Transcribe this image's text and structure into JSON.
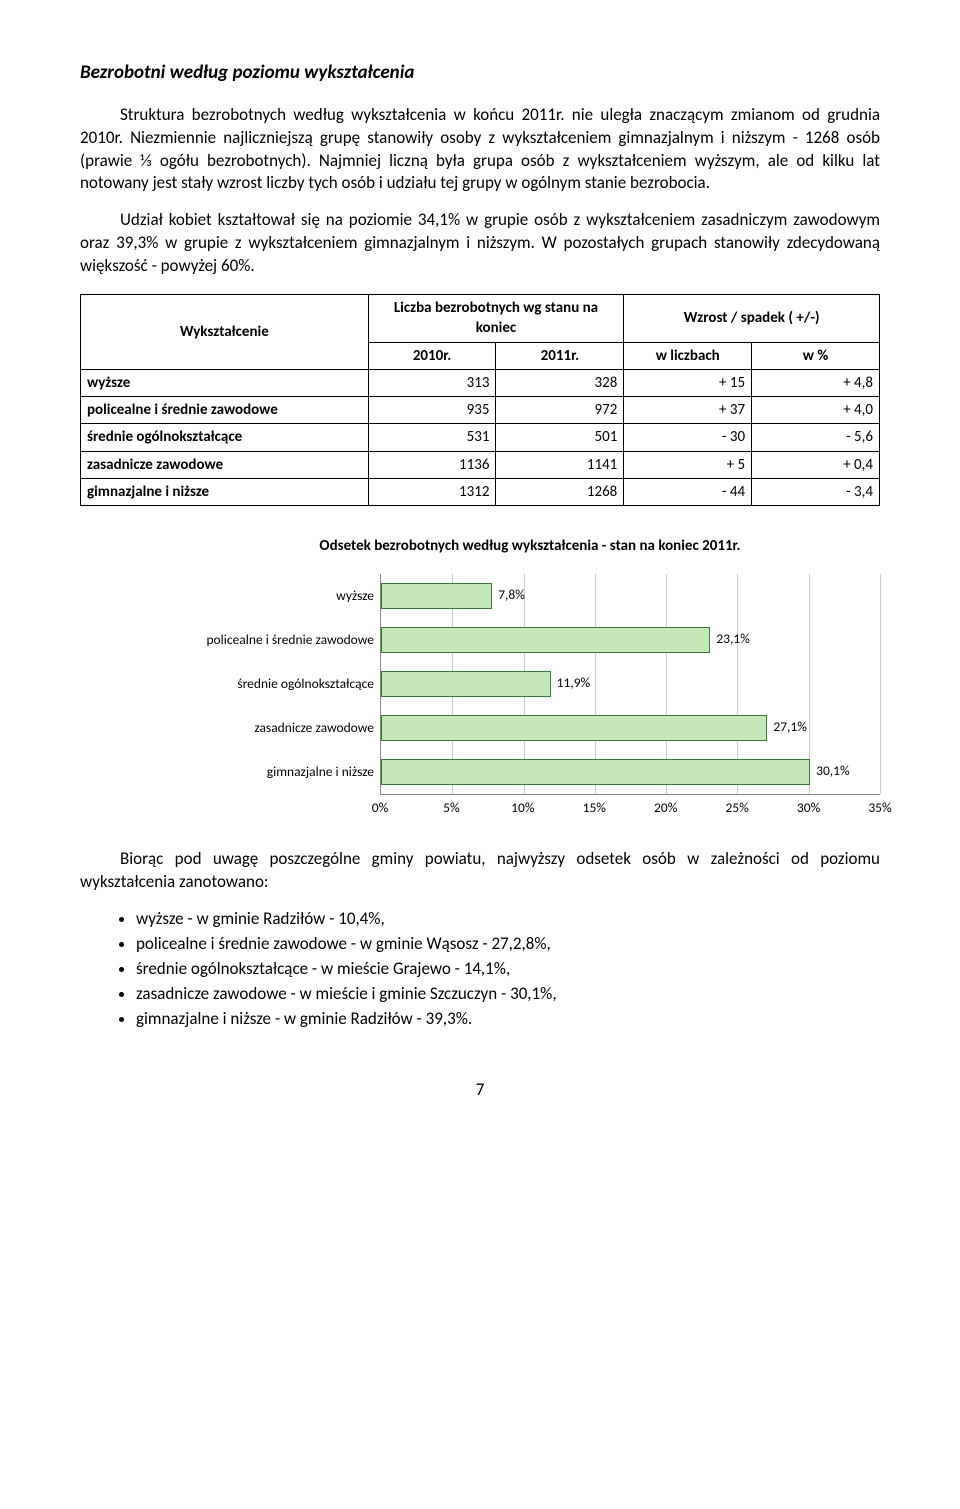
{
  "section_title": "Bezrobotni według poziomu wykształcenia",
  "para1": "Struktura bezrobotnych według wykształcenia w końcu 2011r. nie uległa znaczącym zmianom od grudnia 2010r. Niezmiennie najliczniejszą grupę stanowiły osoby z wykształceniem gimnazjalnym i niższym - 1268 osób (prawie ⅓ ogółu bezrobotnych). Najmniej liczną była grupa osób z wykształceniem wyższym, ale od kilku lat notowany jest stały wzrost liczby tych osób i udziału tej grupy w ogólnym stanie bezrobocia.",
  "para2": "Udział kobiet kształtował się na poziomie 34,1% w grupie osób z wykształceniem zasadniczym zawodowym oraz 39,3% w grupie z wykształceniem gimnazjalnym i niższym. W pozostałych grupach stanowiły zdecydowaną większość - powyżej 60%.",
  "table": {
    "col_group_left": "Wykształcenie",
    "col_group_mid": "Liczba bezrobotnych wg stanu na koniec",
    "col_group_right": "Wzrost / spadek ( +/-)",
    "sub_2010": "2010r.",
    "sub_2011": "2011r.",
    "sub_licz": "w liczbach",
    "sub_pct": "w %",
    "rows": [
      {
        "label": "wyższe",
        "v2010": "313",
        "v2011": "328",
        "delta": "+ 15",
        "pct": "+ 4,8"
      },
      {
        "label": "policealne i średnie zawodowe",
        "v2010": "935",
        "v2011": "972",
        "delta": "+ 37",
        "pct": "+ 4,0"
      },
      {
        "label": "średnie ogólnokształcące",
        "v2010": "531",
        "v2011": "501",
        "delta": "- 30",
        "pct": "- 5,6"
      },
      {
        "label": "zasadnicze zawodowe",
        "v2010": "1136",
        "v2011": "1141",
        "delta": "+ 5",
        "pct": "+ 0,4"
      },
      {
        "label": "gimnazjalne i niższe",
        "v2010": "1312",
        "v2011": "1268",
        "delta": "- 44",
        "pct": "- 3,4"
      }
    ]
  },
  "chart": {
    "type": "bar-horizontal",
    "title": "Odsetek bezrobotnych według wykształcenia - stan na koniec 2011r.",
    "xmax": 35,
    "xtick_step": 5,
    "bar_fill": "#c3e8b8",
    "bar_border": "#3b7a3b",
    "grid_color": "#cccccc",
    "categories": [
      {
        "label": "wyższe",
        "value": 7.8,
        "text": "7,8%"
      },
      {
        "label": "policealne i średnie zawodowe",
        "value": 23.1,
        "text": "23,1%"
      },
      {
        "label": "średnie ogólnokształcące",
        "value": 11.9,
        "text": "11,9%"
      },
      {
        "label": "zasadnicze zawodowe",
        "value": 27.1,
        "text": "27,1%"
      },
      {
        "label": "gimnazjalne i niższe",
        "value": 30.1,
        "text": "30,1%"
      }
    ],
    "ticks": [
      "0%",
      "5%",
      "10%",
      "15%",
      "20%",
      "25%",
      "30%",
      "35%"
    ]
  },
  "para3": "Biorąc pod uwagę poszczególne gminy powiatu, najwyższy odsetek osób w zależności od poziomu wykształcenia zanotowano:",
  "bullets": [
    "wyższe - w gminie Radziłów - 10,4%,",
    "policealne i średnie zawodowe - w gminie Wąsosz - 27,2,8%,",
    "średnie ogólnokształcące - w mieście Grajewo - 14,1%,",
    "zasadnicze zawodowe - w mieście i gminie Szczuczyn - 30,1%,",
    "gimnazjalne i niższe - w gminie Radziłów - 39,3%."
  ],
  "page_number": "7"
}
